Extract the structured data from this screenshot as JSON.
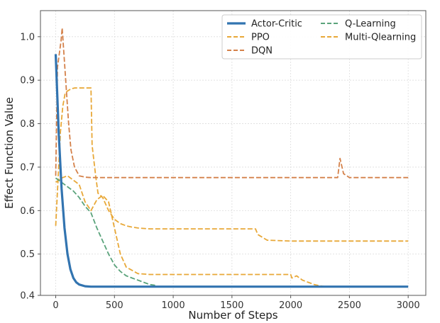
{
  "chart_data": {
    "type": "line",
    "title": "",
    "xlabel": "Number of Steps",
    "ylabel": "Effect Function Value",
    "xlim": [
      -130,
      3150
    ],
    "ylim": [
      0.405,
      1.06
    ],
    "xticks": [
      0,
      500,
      1000,
      1500,
      2000,
      2500,
      3000
    ],
    "yticks": [
      0.4,
      0.5,
      0.6,
      0.7,
      0.8,
      0.9,
      1.0
    ],
    "xtick_labels": [
      "0",
      "500",
      "1000",
      "1500",
      "2000",
      "2500",
      "3000"
    ],
    "ytick_labels": [
      "0.4",
      "0.5",
      "0.6",
      "0.7",
      "0.8",
      "0.9",
      "1.0"
    ],
    "grid": true,
    "legend_position": "top-right",
    "series": [
      {
        "name": "Actor-Critic",
        "color": "#3274b0",
        "style": "solid",
        "x": [
          0,
          25,
          50,
          75,
          100,
          125,
          150,
          175,
          200,
          250,
          300,
          400,
          600,
          800,
          1000,
          1500,
          2000,
          2500,
          3000
        ],
        "y": [
          0.96,
          0.78,
          0.65,
          0.56,
          0.5,
          0.465,
          0.445,
          0.435,
          0.43,
          0.426,
          0.425,
          0.425,
          0.425,
          0.425,
          0.425,
          0.425,
          0.425,
          0.425,
          0.425
        ]
      },
      {
        "name": "PPO",
        "color": "#e8a838",
        "style": "dashed",
        "x": [
          0,
          10,
          25,
          40,
          60,
          80,
          100,
          130,
          160,
          200,
          250,
          290,
          300,
          310,
          340,
          360,
          400,
          450,
          500,
          550,
          600,
          650,
          700,
          800,
          1000,
          1200,
          1400,
          1600,
          1700,
          1720,
          1800,
          2000,
          2500,
          3000
        ],
        "y": [
          0.565,
          0.62,
          0.7,
          0.78,
          0.84,
          0.87,
          0.875,
          0.88,
          0.882,
          0.882,
          0.882,
          0.882,
          0.882,
          0.75,
          0.68,
          0.64,
          0.63,
          0.6,
          0.58,
          0.57,
          0.565,
          0.562,
          0.56,
          0.558,
          0.558,
          0.558,
          0.558,
          0.558,
          0.558,
          0.545,
          0.532,
          0.53,
          0.53,
          0.53
        ]
      },
      {
        "name": "DQN",
        "color": "#d4814a",
        "style": "dashed",
        "x": [
          0,
          15,
          30,
          45,
          55,
          70,
          90,
          110,
          130,
          160,
          200,
          250,
          300,
          400,
          500,
          600,
          700,
          800,
          1000,
          1250,
          1500,
          2000,
          2400,
          2420,
          2450,
          2500,
          3000
        ],
        "y": [
          0.68,
          0.93,
          0.96,
          0.99,
          1.02,
          0.96,
          0.88,
          0.8,
          0.74,
          0.7,
          0.68,
          0.677,
          0.676,
          0.676,
          0.676,
          0.676,
          0.676,
          0.676,
          0.676,
          0.676,
          0.676,
          0.676,
          0.676,
          0.72,
          0.685,
          0.676,
          0.676
        ]
      },
      {
        "name": "Q-Learning",
        "color": "#5aa37b",
        "style": "dashed",
        "x": [
          0,
          50,
          100,
          150,
          200,
          250,
          300,
          350,
          400,
          450,
          500,
          550,
          600,
          650,
          700,
          750,
          800,
          850
        ],
        "y": [
          0.675,
          0.665,
          0.655,
          0.645,
          0.63,
          0.61,
          0.595,
          0.56,
          0.53,
          0.5,
          0.475,
          0.46,
          0.45,
          0.445,
          0.44,
          0.435,
          0.43,
          0.428
        ]
      },
      {
        "name": "Multi-Qlearning",
        "color": "#e8a838",
        "style": "dashed",
        "x": [
          0,
          50,
          100,
          150,
          200,
          250,
          300,
          350,
          400,
          450,
          500,
          550,
          600,
          700,
          800,
          1000,
          1500,
          2000,
          2010,
          2050,
          2100,
          2150,
          2200,
          2250,
          2300
        ],
        "y": [
          0.665,
          0.675,
          0.68,
          0.67,
          0.66,
          0.62,
          0.6,
          0.625,
          0.635,
          0.62,
          0.56,
          0.5,
          0.47,
          0.455,
          0.453,
          0.453,
          0.453,
          0.453,
          0.445,
          0.45,
          0.44,
          0.435,
          0.43,
          0.427,
          0.425
        ]
      }
    ]
  }
}
